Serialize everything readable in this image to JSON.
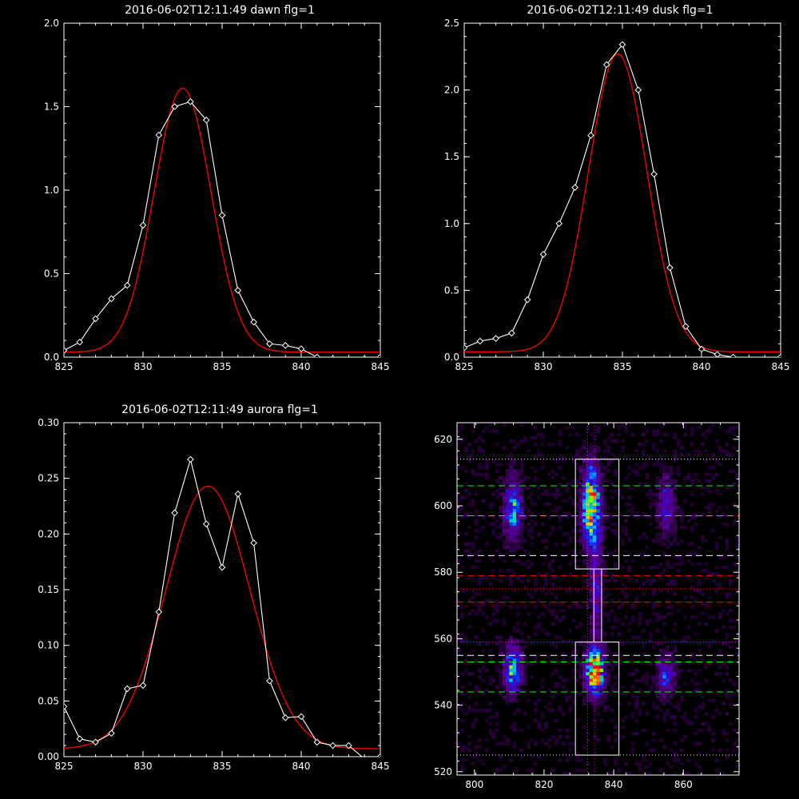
{
  "colors": {
    "background": "#000000",
    "axes": "#ffffff",
    "observed": "#ffffff",
    "fit": "#ff0000",
    "mark_green": "#00ff00",
    "mark_red": "#ff0000",
    "mark_magenta": "#ff00ff",
    "mark_white": "#ffffff"
  },
  "chart_data": [
    {
      "type": "line",
      "title": "2016-06-02T12:11:49 dawn flg=1",
      "xlim": [
        825,
        845
      ],
      "ylim": [
        0,
        2.0
      ],
      "x_ticks": [
        "825",
        "830",
        "835",
        "840",
        "845"
      ],
      "y_ticks": [
        "0.0",
        "0.5",
        "1.0",
        "1.5",
        "2.0"
      ],
      "series": [
        {
          "role": "observed",
          "marker": "diamond",
          "color": "#ffffff",
          "x": [
            825,
            826,
            827,
            828,
            829,
            830,
            831,
            832,
            833,
            834,
            835,
            836,
            837,
            838,
            839,
            840,
            841,
            842,
            843,
            844,
            845
          ],
          "y": [
            0.04,
            0.09,
            0.23,
            0.35,
            0.43,
            0.79,
            1.33,
            1.5,
            1.53,
            1.42,
            0.85,
            0.4,
            0.21,
            0.08,
            0.07,
            0.05,
            0.0,
            -0.01,
            -0.02,
            -0.01,
            0.0
          ]
        },
        {
          "role": "fit",
          "color": "#ff0000",
          "gaussian": {
            "amplitude": 1.58,
            "center": 832.5,
            "sigma": 1.8,
            "baseline": 0.03
          }
        }
      ]
    },
    {
      "type": "line",
      "title": "2016-06-02T12:11:49 dusk flg=1",
      "xlim": [
        825,
        845
      ],
      "ylim": [
        0,
        2.5
      ],
      "x_ticks": [
        "825",
        "830",
        "835",
        "840",
        "845"
      ],
      "y_ticks": [
        "0.0",
        "0.5",
        "1.0",
        "1.5",
        "2.0",
        "2.5"
      ],
      "series": [
        {
          "role": "observed",
          "marker": "diamond",
          "color": "#ffffff",
          "x": [
            825,
            826,
            827,
            828,
            829,
            830,
            831,
            832,
            833,
            834,
            835,
            836,
            837,
            838,
            839,
            840,
            841,
            842,
            843,
            844,
            845
          ],
          "y": [
            0.07,
            0.12,
            0.14,
            0.18,
            0.43,
            0.77,
            1.0,
            1.27,
            1.66,
            2.19,
            2.34,
            2.0,
            1.37,
            0.67,
            0.23,
            0.06,
            0.02,
            0.0,
            -0.02,
            -0.02,
            0.0
          ]
        },
        {
          "role": "fit",
          "color": "#ff0000",
          "gaussian": {
            "amplitude": 2.23,
            "center": 834.7,
            "sigma": 1.85,
            "baseline": 0.04
          }
        }
      ]
    },
    {
      "type": "line",
      "title": "2016-06-02T12:11:49 aurora flg=1",
      "xlim": [
        825,
        845
      ],
      "ylim": [
        0,
        0.3
      ],
      "x_ticks": [
        "825",
        "830",
        "835",
        "840",
        "845"
      ],
      "y_ticks": [
        "0.00",
        "0.05",
        "0.10",
        "0.15",
        "0.20",
        "0.25",
        "0.30"
      ],
      "series": [
        {
          "role": "observed",
          "marker": "diamond",
          "color": "#ffffff",
          "x": [
            825,
            826,
            827,
            828,
            829,
            830,
            831,
            832,
            833,
            834,
            835,
            836,
            837,
            838,
            839,
            840,
            841,
            842,
            843,
            844,
            845
          ],
          "y": [
            0.045,
            0.016,
            0.013,
            0.021,
            0.061,
            0.064,
            0.13,
            0.219,
            0.267,
            0.209,
            0.17,
            0.236,
            0.192,
            0.068,
            0.035,
            0.036,
            0.013,
            0.01,
            0.01,
            -0.002,
            0.0
          ]
        },
        {
          "role": "fit",
          "color": "#ff0000",
          "gaussian": {
            "amplitude": 0.236,
            "center": 834.1,
            "sigma": 2.65,
            "baseline": 0.007
          }
        }
      ]
    },
    {
      "type": "heatmap",
      "title": "",
      "xlim": [
        795,
        876
      ],
      "ylim": [
        519,
        625
      ],
      "x_ticks": [
        "800",
        "820",
        "840",
        "860"
      ],
      "y_ticks": [
        "520",
        "540",
        "560",
        "580",
        "600",
        "620"
      ],
      "colormap": "rainbow",
      "sources": [
        {
          "x": 811,
          "y": 599,
          "sx": 1.6,
          "sy": 6,
          "amp": 0.55
        },
        {
          "x": 811,
          "y": 551,
          "sx": 1.7,
          "sy": 4.5,
          "amp": 0.6
        },
        {
          "x": 833.5,
          "y": 600,
          "sx": 1.7,
          "sy": 8,
          "amp": 0.85
        },
        {
          "x": 834.5,
          "y": 550,
          "sx": 1.7,
          "sy": 4.5,
          "amp": 1.0
        },
        {
          "x": 835,
          "y": 576,
          "sx": 1.2,
          "sy": 12,
          "amp": 0.28
        },
        {
          "x": 855,
          "y": 600,
          "sx": 1.6,
          "sy": 6,
          "amp": 0.32
        },
        {
          "x": 855,
          "y": 549,
          "sx": 1.6,
          "sy": 4,
          "amp": 0.42
        }
      ],
      "boxes": [
        {
          "x": [
            829,
            841.5
          ],
          "y": [
            581,
            614
          ],
          "color": "#ffffff"
        },
        {
          "x": [
            829,
            841.5
          ],
          "y": [
            525,
            559
          ],
          "color": "#ffffff"
        }
      ],
      "hlines": [
        {
          "y": 614,
          "style": "dotted",
          "color": "#ffffff"
        },
        {
          "y": 606,
          "style": "dashed",
          "color": "#00ff00"
        },
        {
          "y": 597,
          "style": "dashed",
          "color": "#00ff00"
        },
        {
          "y": 585,
          "style": "dashed",
          "color": "#ffffff"
        },
        {
          "y": 579,
          "style": "dashed",
          "color": "#ff0000"
        },
        {
          "y": 575,
          "style": "dotted",
          "color": "#ff0000"
        },
        {
          "y": 571,
          "style": "dashed",
          "color": "#ff0000"
        },
        {
          "y": 559,
          "style": "dotted",
          "color": "#ff00ff"
        },
        {
          "y": 555,
          "style": "dashed",
          "color": "#ffffff"
        },
        {
          "y": 553,
          "style": "dashed",
          "color": "#00ff00"
        },
        {
          "y": 544,
          "style": "dashed",
          "color": "#00ff00"
        },
        {
          "y": 525,
          "style": "dotted",
          "color": "#ffffff"
        }
      ],
      "vlines": [
        {
          "x": 832.5,
          "style": "dotted",
          "color": "#ff00ff"
        },
        {
          "x": 834.5,
          "style": "dotted",
          "color": "#ff00ff"
        },
        {
          "x": 834.3,
          "style": "solid",
          "color": "#ffffff",
          "y": [
            559,
            581
          ]
        },
        {
          "x": 836.5,
          "style": "solid",
          "color": "#ffffff",
          "y": [
            559,
            581
          ]
        }
      ]
    }
  ]
}
